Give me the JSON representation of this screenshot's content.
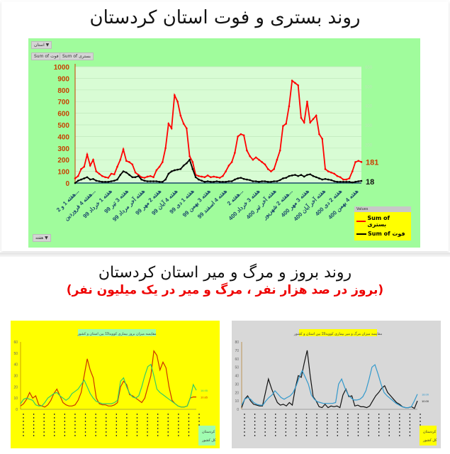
{
  "section1": {
    "title": "روند بستری و فوت استان کردستان",
    "filter_button": "استان ▼",
    "field_buttons": [
      "Sum of فوت",
      "Sum of بستری"
    ],
    "bottom_button": "هفته ▼",
    "legend": {
      "header": "Values",
      "items": [
        {
          "label": "Sum of بستری",
          "color": "#ff0000"
        },
        {
          "label": "Sum of فوت",
          "color": "#000000"
        }
      ]
    },
    "last_values": {
      "hospitalized": "181",
      "deaths": "18"
    }
  },
  "section2": {
    "title": "روند بروز و مرگ و میر استان کردستان",
    "subtitle": "(بروز در صد هزار نفر ، مرگ و میر در یک میلیون نفر)"
  },
  "chart_data": [
    {
      "type": "line",
      "title": "روند بستری و فوت استان کردستان",
      "ylabel": "",
      "ylim": [
        0,
        1000
      ],
      "yticks": [
        0,
        100,
        200,
        300,
        400,
        500,
        600,
        700,
        800,
        900,
        1000
      ],
      "y2lim": [
        0,
        600
      ],
      "y2ticks": [
        0,
        100,
        200,
        300,
        400,
        500,
        600
      ],
      "grid": true,
      "legend_position": "bottom-right",
      "x_tick_labels": [
        "هفته 1 و 2...",
        "هفته 4 فروردین...",
        "هفته 1 خرداد 99",
        "هفته 3 تیر 99",
        "هفته آخر مرداد 99",
        "هفته 2 مهر 99",
        "هفته 4 آبان 99",
        "هفته 1 دی 99",
        "هفته 3 بهمن 99",
        "هفته 4 اسفند 99",
        "هفته 2...",
        "هفته 3 خرداد 400",
        "هفته آخر تیر 400",
        "هفته 2 شهریور...",
        "هفته 3 مهر 400",
        "هفته آخر آبان 400",
        "هفته 2 دی 400",
        "هفته 4 بهمن 400"
      ],
      "series": [
        {
          "name": "Sum of بستری",
          "color": "#ff0000",
          "values": [
            40,
            60,
            120,
            140,
            245,
            150,
            200,
            100,
            80,
            60,
            50,
            45,
            80,
            75,
            140,
            200,
            290,
            190,
            180,
            160,
            90,
            70,
            50,
            45,
            55,
            60,
            50,
            110,
            140,
            180,
            300,
            510,
            470,
            755,
            700,
            580,
            510,
            470,
            230,
            180,
            70,
            60,
            55,
            50,
            65,
            50,
            55,
            50,
            45,
            60,
            100,
            150,
            180,
            260,
            400,
            420,
            410,
            280,
            230,
            200,
            220,
            200,
            180,
            160,
            120,
            100,
            120,
            200,
            280,
            490,
            510,
            660,
            880,
            860,
            840,
            560,
            520,
            700,
            520,
            550,
            580,
            420,
            380,
            120,
            100,
            90,
            80,
            60,
            50,
            30,
            30,
            40,
            100,
            180,
            190,
            181
          ]
        },
        {
          "name": "Sum of فوت",
          "color": "#000000",
          "values": [
            0,
            20,
            30,
            40,
            50,
            30,
            35,
            20,
            15,
            10,
            10,
            10,
            15,
            20,
            30,
            70,
            100,
            90,
            70,
            50,
            50,
            60,
            30,
            20,
            15,
            15,
            15,
            15,
            10,
            10,
            30,
            80,
            100,
            110,
            115,
            120,
            150,
            170,
            200,
            120,
            50,
            30,
            20,
            10,
            15,
            10,
            10,
            15,
            10,
            10,
            10,
            15,
            15,
            30,
            40,
            45,
            35,
            30,
            25,
            15,
            15,
            10,
            15,
            15,
            10,
            10,
            15,
            15,
            25,
            40,
            45,
            60,
            65,
            70,
            60,
            70,
            55,
            70,
            75,
            60,
            50,
            40,
            30,
            35,
            30,
            25,
            15,
            10,
            10,
            10,
            10,
            10,
            5,
            10,
            15,
            18
          ]
        }
      ]
    },
    {
      "type": "line",
      "title": "مقایسه میزان بروز بیماری کووید19 بین استان و کشور",
      "ylim": [
        0,
        60
      ],
      "yticks": [
        0,
        10,
        20,
        30,
        40,
        50,
        60
      ],
      "background": "#ffff00",
      "legend": [
        "کردستان",
        "کل کشور"
      ],
      "last_values": [
        "10.85",
        "16.95"
      ],
      "series": [
        {
          "name": "کردستان",
          "color": "#cc3300",
          "values": [
            3,
            5,
            9,
            15,
            10,
            12,
            4,
            3,
            2,
            4,
            8,
            14,
            18,
            12,
            6,
            4,
            3,
            3,
            4,
            8,
            15,
            30,
            45,
            35,
            28,
            10,
            5,
            4,
            4,
            3,
            3,
            4,
            6,
            20,
            25,
            22,
            13,
            12,
            10,
            8,
            6,
            10,
            20,
            30,
            52,
            48,
            35,
            42,
            37,
            20,
            8,
            5,
            3,
            2,
            2,
            3,
            10,
            11,
            11
          ]
        },
        {
          "name": "کل کشور",
          "color": "#33cc66",
          "values": [
            5,
            9,
            10,
            9,
            8,
            4,
            3,
            3,
            6,
            10,
            12,
            14,
            15,
            12,
            10,
            8,
            10,
            14,
            16,
            18,
            22,
            26,
            20,
            14,
            10,
            7,
            6,
            5,
            5,
            5,
            5,
            6,
            8,
            25,
            28,
            20,
            14,
            11,
            10,
            12,
            20,
            30,
            38,
            40,
            30,
            18,
            15,
            13,
            11,
            9,
            7,
            5,
            3,
            2,
            2,
            3,
            10,
            22,
            17
          ]
        }
      ]
    },
    {
      "type": "line",
      "title": "مقایسه میزان مرگ و میر بیماری کووید19 بین استان و کشور",
      "ylim": [
        0,
        80
      ],
      "yticks": [
        0,
        10,
        20,
        30,
        40,
        50,
        60,
        70,
        80
      ],
      "background": "#d8d8d8",
      "legend": [
        "کردستان",
        "کل کشور"
      ],
      "last_values": [
        "10.00",
        "18.00"
      ],
      "series": [
        {
          "name": "کردستان",
          "color": "#111111",
          "values": [
            2,
            12,
            16,
            10,
            6,
            5,
            4,
            4,
            20,
            36,
            25,
            16,
            8,
            5,
            6,
            4,
            8,
            5,
            25,
            40,
            38,
            55,
            70,
            40,
            15,
            10,
            3,
            2,
            6,
            2,
            4,
            3,
            4,
            2,
            17,
            24,
            15,
            16,
            4,
            5,
            3,
            3,
            2,
            4,
            10,
            16,
            20,
            25,
            28,
            20,
            16,
            12,
            8,
            6,
            3,
            2,
            2,
            3,
            1,
            10
          ]
        },
        {
          "name": "کل کشور",
          "color": "#3399cc",
          "values": [
            5,
            12,
            14,
            12,
            8,
            6,
            5,
            5,
            10,
            14,
            17,
            22,
            18,
            14,
            12,
            14,
            16,
            20,
            28,
            38,
            46,
            38,
            30,
            17,
            12,
            9,
            8,
            7,
            7,
            7,
            7,
            8,
            30,
            36,
            26,
            18,
            14,
            11,
            11,
            12,
            15,
            22,
            35,
            50,
            53,
            42,
            30,
            20,
            16,
            13,
            10,
            7,
            5,
            3,
            2,
            2,
            3,
            10,
            18
          ]
        }
      ]
    }
  ]
}
